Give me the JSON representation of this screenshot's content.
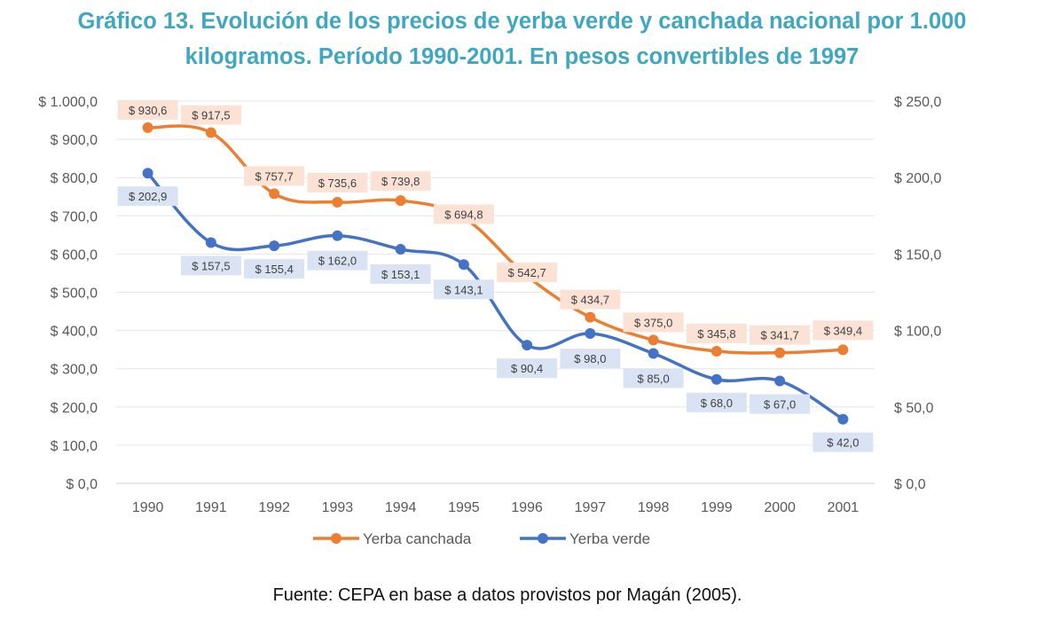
{
  "title": {
    "line1": "Gráfico 13. Evolución de los precios de yerba verde y canchada nacional por 1.000",
    "line2": "kilogramos. Período 1990-2001. En pesos convertibles de 1997"
  },
  "source": "Fuente: CEPA en base a datos provistos por Magán (2005).",
  "colors": {
    "canchada": "#ed7d31",
    "canchada_label_bg": "#fbe2d5",
    "verde": "#4472c4",
    "verde_label_bg": "#dae3f3",
    "grid": "#e6e6e6"
  },
  "chart_data": {
    "type": "line",
    "categories": [
      "1990",
      "1991",
      "1992",
      "1993",
      "1994",
      "1995",
      "1996",
      "1997",
      "1998",
      "1999",
      "2000",
      "2001"
    ],
    "y_left": {
      "ylim": [
        0,
        1000
      ],
      "ticks": [
        "$ 0,0",
        "$ 100,0",
        "$ 200,0",
        "$ 300,0",
        "$ 400,0",
        "$ 500,0",
        "$ 600,0",
        "$ 700,0",
        "$ 800,0",
        "$ 900,0",
        "$ 1.000,0"
      ]
    },
    "y_right": {
      "ylim": [
        0,
        250
      ],
      "ticks": [
        "$ 0,0",
        "$ 50,0",
        "$ 100,0",
        "$ 150,0",
        "$ 200,0",
        "$ 250,0"
      ]
    },
    "grid": true,
    "legend_position": "bottom",
    "series": [
      {
        "name": "Yerba canchada",
        "axis": "left",
        "values": [
          930.6,
          917.5,
          757.7,
          735.6,
          739.8,
          694.8,
          542.7,
          434.7,
          375.0,
          345.8,
          341.7,
          349.4
        ],
        "labels": [
          "$ 930,6",
          "$ 917,5",
          "$ 757,7",
          "$ 735,6",
          "$ 739,8",
          "$ 694,8",
          "$ 542,7",
          "$ 434,7",
          "$ 375,0",
          "$ 345,8",
          "$ 341,7",
          "$ 349,4"
        ]
      },
      {
        "name": "Yerba verde",
        "axis": "right",
        "values": [
          202.9,
          157.5,
          155.4,
          162.0,
          153.1,
          143.1,
          90.4,
          98.0,
          85.0,
          68.0,
          67.0,
          42.0
        ],
        "labels": [
          "$ 202,9",
          "$ 157,5",
          "$ 155,4",
          "$ 162,0",
          "$ 153,1",
          "$ 143,1",
          "$ 90,4",
          "$ 98,0",
          "$ 85,0",
          "$ 68,0",
          "$ 67,0",
          "$ 42,0"
        ]
      }
    ]
  }
}
